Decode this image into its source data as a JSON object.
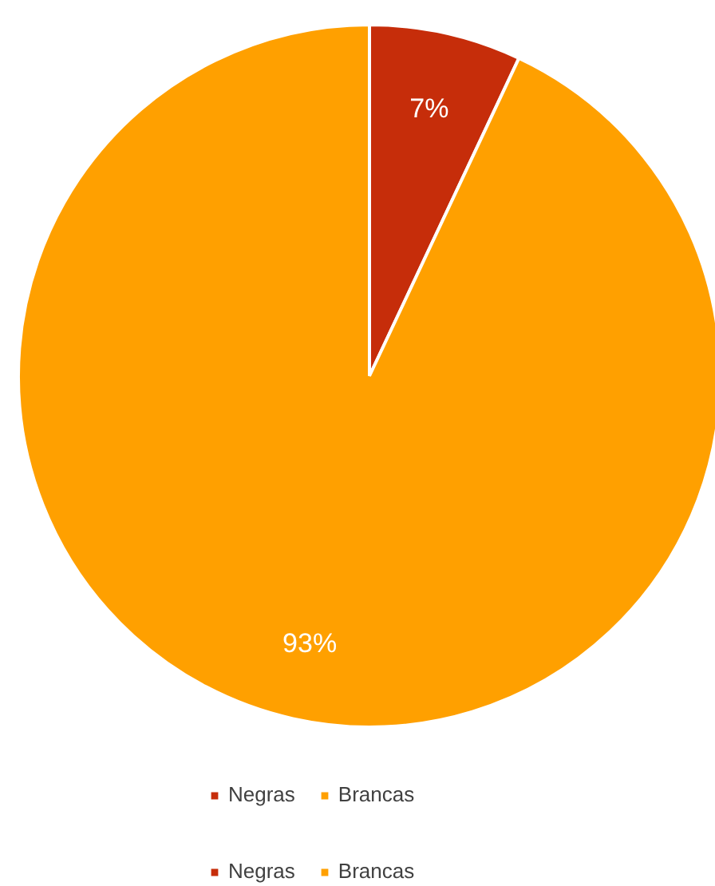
{
  "chart_data": {
    "type": "pie",
    "categories": [
      "Negras",
      "Brancas"
    ],
    "values": [
      7,
      93
    ],
    "colors": [
      "#c62d0a",
      "#ffa000"
    ],
    "value_labels": [
      "7%",
      "93%"
    ],
    "legend": "bottom"
  }
}
